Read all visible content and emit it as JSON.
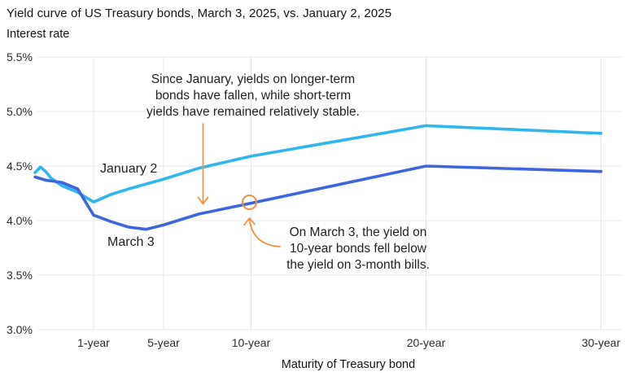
{
  "chart_data": {
    "type": "line",
    "title": "Yield curve of US Treasury bonds, March 3, 2025, vs. January 2, 2025",
    "ylabel": "Interest rate",
    "xlabel": "Maturity of Treasury bond",
    "ylim": [
      3.0,
      5.5
    ],
    "grid": true,
    "legend_position": "inline-labels",
    "y_ticks": [
      {
        "label": "5.5%",
        "value": 5.5
      },
      {
        "label": "5.0%",
        "value": 5.0
      },
      {
        "label": "4.5%",
        "value": 4.5
      },
      {
        "label": "4.0%",
        "value": 4.0
      },
      {
        "label": "3.5%",
        "value": 3.5
      },
      {
        "label": "3.0%",
        "value": 3.0
      }
    ],
    "x_ticks": [
      {
        "label": "1-year",
        "years": 1
      },
      {
        "label": "5-year",
        "years": 5
      },
      {
        "label": "10-year",
        "years": 10
      },
      {
        "label": "20-year",
        "years": 20
      },
      {
        "label": "30-year",
        "years": 30
      }
    ],
    "series": [
      {
        "name": "January 2",
        "color": "#30B6EF",
        "points": [
          {
            "maturity": "1-month",
            "years": 0.083,
            "yield": 4.44
          },
          {
            "maturity": "2-month",
            "years": 0.167,
            "yield": 4.49
          },
          {
            "maturity": "3-month",
            "years": 0.25,
            "yield": 4.45
          },
          {
            "maturity": "4-month",
            "years": 0.333,
            "yield": 4.39
          },
          {
            "maturity": "6-month",
            "years": 0.5,
            "yield": 4.32
          },
          {
            "maturity": "9-month",
            "years": 0.75,
            "yield": 4.26
          },
          {
            "maturity": "1-year",
            "years": 1,
            "yield": 4.17
          },
          {
            "maturity": "2-year",
            "years": 2,
            "yield": 4.24
          },
          {
            "maturity": "3-year",
            "years": 3,
            "yield": 4.29
          },
          {
            "maturity": "5-year",
            "years": 5,
            "yield": 4.38
          },
          {
            "maturity": "7-year",
            "years": 7,
            "yield": 4.48
          },
          {
            "maturity": "10-year",
            "years": 10,
            "yield": 4.59
          },
          {
            "maturity": "20-year",
            "years": 20,
            "yield": 4.87
          },
          {
            "maturity": "30-year",
            "years": 30,
            "yield": 4.8
          }
        ]
      },
      {
        "name": "March 3",
        "color": "#3B66E0",
        "points": [
          {
            "maturity": "1-month",
            "years": 0.083,
            "yield": 4.4
          },
          {
            "maturity": "3-month",
            "years": 0.25,
            "yield": 4.37
          },
          {
            "maturity": "6-month",
            "years": 0.5,
            "yield": 4.35
          },
          {
            "maturity": "9-month",
            "years": 0.75,
            "yield": 4.29
          },
          {
            "maturity": "1-year",
            "years": 1,
            "yield": 4.05
          },
          {
            "maturity": "2-year",
            "years": 2,
            "yield": 3.99
          },
          {
            "maturity": "3-year",
            "years": 3,
            "yield": 3.94
          },
          {
            "maturity": "4-year",
            "years": 4,
            "yield": 3.92
          },
          {
            "maturity": "5-year",
            "years": 5,
            "yield": 3.96
          },
          {
            "maturity": "7-year",
            "years": 7,
            "yield": 4.06
          },
          {
            "maturity": "10-year",
            "years": 10,
            "yield": 4.16
          },
          {
            "maturity": "20-year",
            "years": 20,
            "yield": 4.5
          },
          {
            "maturity": "30-year",
            "years": 30,
            "yield": 4.45
          }
        ]
      }
    ],
    "annotations": [
      {
        "id": "long-term-note",
        "lines": [
          "Since January, yields on longer-term",
          "bonds have fallen, while short-term",
          "yields have remained relatively stable."
        ]
      },
      {
        "id": "inversion-note",
        "lines": [
          "On March 3, the yield on",
          "10-year bonds fell below",
          "the yield on 3-month bills."
        ]
      }
    ],
    "highlight": {
      "series": "March 3",
      "maturity": "10-year",
      "yield": 4.16
    }
  },
  "colors": {
    "accent_orange": "#F6913C",
    "gridline": "#E7E7E7",
    "text": "#141414"
  }
}
